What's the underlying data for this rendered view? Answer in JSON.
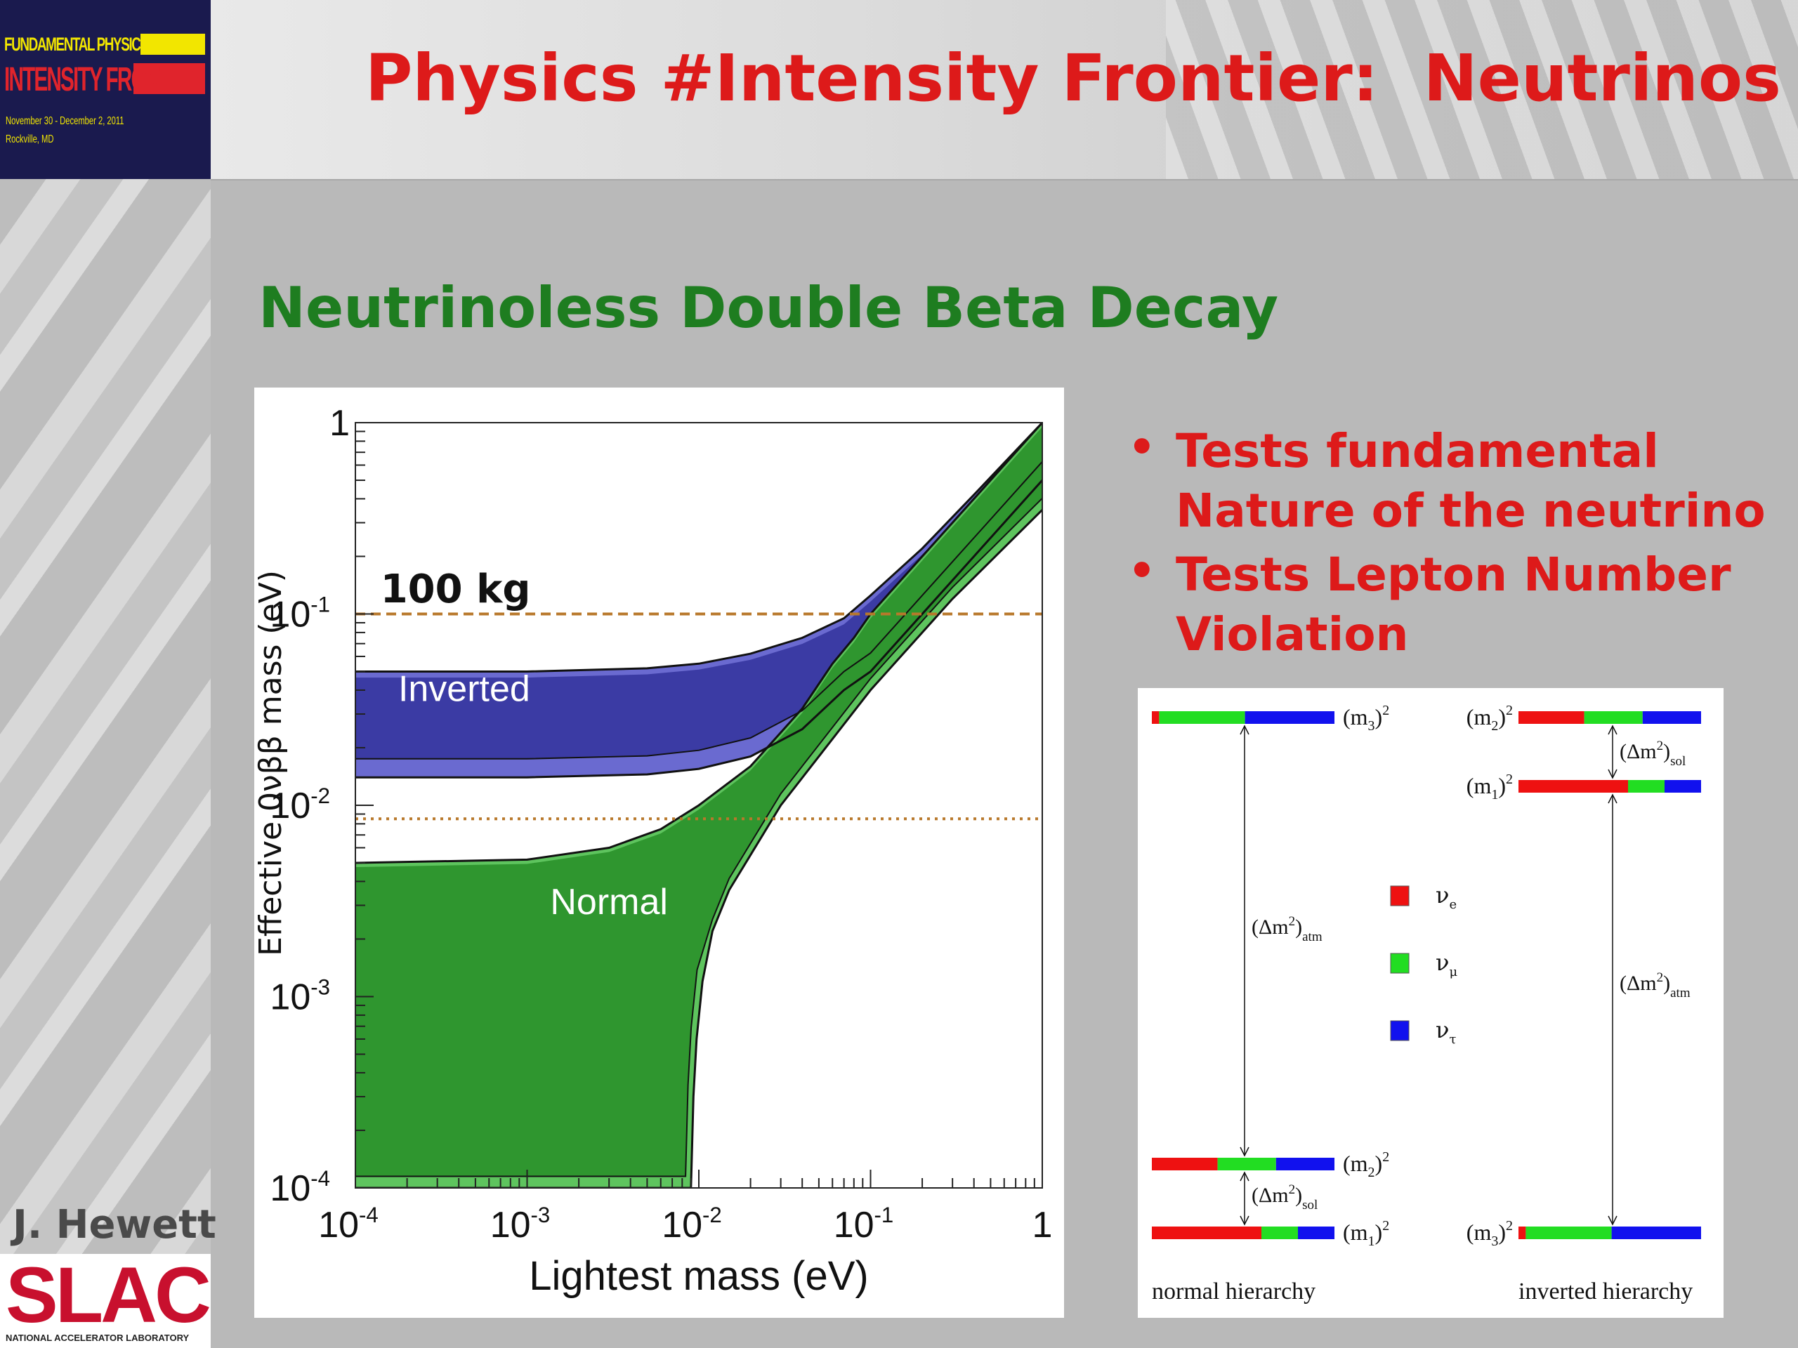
{
  "slide": {
    "title": "Physics #Intensity Frontier:  Neutrinos",
    "subtitle": "Neutrinoless Double Beta Decay",
    "author": "J. Hewett",
    "conference_logo": {
      "line1": "FUNDAMENTAL PHYSICS AT THE",
      "line2": "INTENSITY FRONTIER",
      "line3": "November 30 - December 2, 2011",
      "line4": "Rockville, MD"
    },
    "lab_logo": {
      "word": "SLAC",
      "tagline": "NATIONAL ACCELERATOR LABORATORY"
    },
    "bullets": [
      {
        "lines": [
          "Tests fundamental",
          "Nature of the neutrino"
        ]
      },
      {
        "lines": [
          "Tests Lepton Number",
          "Violation"
        ]
      }
    ],
    "colors": {
      "title": "#dd1a1a",
      "subtitle": "#1e7d20",
      "inverted_band": "#3b3ba4",
      "inverted_band_light": "#6a6ad0",
      "normal_band": "#2f962f",
      "normal_band_light": "#5ec45e",
      "limit_line": "#b8782b",
      "nu_e": "#ee1111",
      "nu_mu": "#22dd22",
      "nu_tau": "#1111ee"
    }
  },
  "chart_data": {
    "type": "area",
    "xlabel": "Lightest mass (eV)",
    "ylabel": "Effective 0νββ mass (eV)",
    "x_scale": "log",
    "y_scale": "log",
    "xlim": [
      0.0001,
      1
    ],
    "ylim": [
      0.0001,
      1
    ],
    "x_ticks": [
      {
        "value": 0.0001,
        "base": "10",
        "exp": "-4"
      },
      {
        "value": 0.001,
        "base": "10",
        "exp": "-3"
      },
      {
        "value": 0.01,
        "base": "10",
        "exp": "-2"
      },
      {
        "value": 0.1,
        "base": "10",
        "exp": "-1"
      },
      {
        "value": 1,
        "base": "1",
        "exp": ""
      }
    ],
    "y_ticks": [
      {
        "value": 0.0001,
        "base": "10",
        "exp": "-4"
      },
      {
        "value": 0.001,
        "base": "10",
        "exp": "-3"
      },
      {
        "value": 0.01,
        "base": "10",
        "exp": "-2"
      },
      {
        "value": 0.1,
        "base": "10",
        "exp": "-1"
      },
      {
        "value": 1,
        "base": "1",
        "exp": ""
      }
    ],
    "annotations": [
      {
        "text": "100 kg",
        "x": 0.00014,
        "y": 0.115
      },
      {
        "text": "Inverted",
        "x": 0.00043,
        "y": 0.035
      },
      {
        "text": "Normal",
        "x": 0.003,
        "y": 0.0027
      }
    ],
    "reference_lines": [
      {
        "y": 0.1,
        "style": "dashed"
      },
      {
        "y": 0.0085,
        "style": "dotted"
      }
    ],
    "series": [
      {
        "name": "Inverted",
        "upper": [
          [
            0.0001,
            0.05
          ],
          [
            0.001,
            0.05
          ],
          [
            0.005,
            0.052
          ],
          [
            0.01,
            0.055
          ],
          [
            0.02,
            0.062
          ],
          [
            0.04,
            0.075
          ],
          [
            0.07,
            0.095
          ],
          [
            0.1,
            0.125
          ],
          [
            0.2,
            0.22
          ],
          [
            0.4,
            0.42
          ],
          [
            1,
            1
          ]
        ],
        "lower": [
          [
            0.0001,
            0.014
          ],
          [
            0.001,
            0.014
          ],
          [
            0.005,
            0.0145
          ],
          [
            0.01,
            0.0155
          ],
          [
            0.02,
            0.018
          ],
          [
            0.04,
            0.025
          ],
          [
            0.07,
            0.04
          ],
          [
            0.1,
            0.05
          ],
          [
            0.2,
            0.1
          ],
          [
            0.4,
            0.2
          ],
          [
            1,
            0.5
          ]
        ]
      },
      {
        "name": "Normal",
        "upper": [
          [
            0.0001,
            0.005
          ],
          [
            0.001,
            0.0052
          ],
          [
            0.003,
            0.006
          ],
          [
            0.006,
            0.0075
          ],
          [
            0.01,
            0.01
          ],
          [
            0.02,
            0.016
          ],
          [
            0.04,
            0.032
          ],
          [
            0.06,
            0.055
          ],
          [
            0.08,
            0.075
          ],
          [
            0.1,
            0.1
          ],
          [
            0.2,
            0.2
          ],
          [
            0.5,
            0.5
          ],
          [
            1,
            1
          ]
        ],
        "lower": [
          [
            0.0001,
            0.0001
          ],
          [
            0.009,
            0.0001
          ],
          [
            0.0093,
            0.0003
          ],
          [
            0.0097,
            0.0006
          ],
          [
            0.0105,
            0.0012
          ],
          [
            0.012,
            0.0022
          ],
          [
            0.015,
            0.0036
          ],
          [
            0.02,
            0.0055
          ],
          [
            0.03,
            0.01
          ],
          [
            0.05,
            0.018
          ],
          [
            0.1,
            0.04
          ],
          [
            0.3,
            0.12
          ],
          [
            1,
            0.35
          ]
        ]
      }
    ]
  },
  "hierarchy_diagram": {
    "normal": {
      "caption": "normal hierarchy",
      "levels": [
        {
          "label": "(m",
          "sub": "3",
          "sup": "2",
          "fractions": [
            0.04,
            0.47,
            0.49
          ]
        },
        {
          "label": "(m",
          "sub": "2",
          "sup": "2",
          "fractions": [
            0.36,
            0.32,
            0.32
          ]
        },
        {
          "label": "(m",
          "sub": "1",
          "sup": "2",
          "fractions": [
            0.6,
            0.2,
            0.2
          ]
        }
      ],
      "gaps": [
        {
          "label": "(Δm",
          "sup": "2",
          "sub": "atm"
        },
        {
          "label": "(Δm",
          "sup": "2",
          "sub": "sol"
        }
      ]
    },
    "inverted": {
      "caption": "inverted hierarchy",
      "levels": [
        {
          "label": "(m",
          "sub": "2",
          "sup": "2",
          "fractions": [
            0.36,
            0.32,
            0.32
          ]
        },
        {
          "label": "(m",
          "sub": "1",
          "sup": "2",
          "fractions": [
            0.6,
            0.2,
            0.2
          ]
        },
        {
          "label": "(m",
          "sub": "3",
          "sup": "2",
          "fractions": [
            0.04,
            0.47,
            0.49
          ]
        }
      ],
      "gaps": [
        {
          "label": "(Δm",
          "sup": "2",
          "sub": "sol"
        },
        {
          "label": "(Δm",
          "sup": "2",
          "sub": "atm"
        }
      ]
    },
    "legend": [
      {
        "symbol": "ν",
        "sub": "e",
        "color": "#ee1111"
      },
      {
        "symbol": "ν",
        "sub": "μ",
        "color": "#22dd22"
      },
      {
        "symbol": "ν",
        "sub": "τ",
        "color": "#1111ee"
      }
    ]
  }
}
